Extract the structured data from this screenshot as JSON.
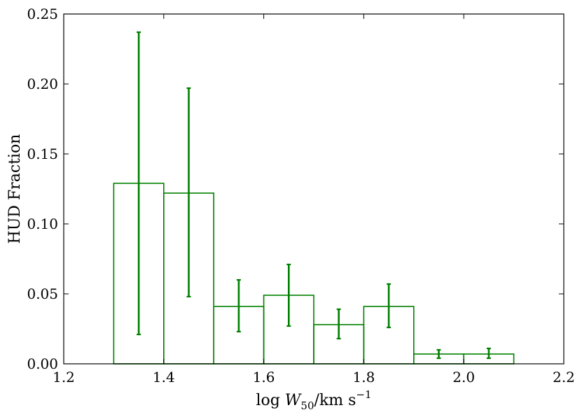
{
  "chart_data": {
    "type": "bar",
    "subtype": "step-histogram-with-error-bars",
    "title": "",
    "xlabel": {
      "prefix": "log ",
      "var": "W",
      "sub": "50",
      "slash": "/",
      "unit": "km s",
      "sup": "−1"
    },
    "ylabel": "HUD Fraction",
    "xlim": [
      1.2,
      2.2
    ],
    "ylim": [
      0.0,
      0.25
    ],
    "xticks": [
      1.2,
      1.4,
      1.6,
      1.8,
      2.0,
      2.2
    ],
    "xtick_labels": [
      "1.2",
      "1.4",
      "1.6",
      "1.8",
      "2.0",
      "2.2"
    ],
    "yticks": [
      0.0,
      0.05,
      0.1,
      0.15,
      0.2,
      0.25
    ],
    "ytick_labels": [
      "0.00",
      "0.05",
      "0.10",
      "0.15",
      "0.20",
      "0.25"
    ],
    "grid": false,
    "color": "#008000",
    "bin_edges": [
      1.3,
      1.4,
      1.5,
      1.6,
      1.7,
      1.8,
      1.9,
      2.0,
      2.1
    ],
    "values": [
      0.129,
      0.122,
      0.041,
      0.049,
      0.028,
      0.041,
      0.007,
      0.007
    ],
    "error_bars": [
      {
        "x": 1.35,
        "low": 0.021,
        "high": 0.237
      },
      {
        "x": 1.45,
        "low": 0.048,
        "high": 0.197
      },
      {
        "x": 1.55,
        "low": 0.023,
        "high": 0.06
      },
      {
        "x": 1.65,
        "low": 0.027,
        "high": 0.071
      },
      {
        "x": 1.75,
        "low": 0.018,
        "high": 0.039
      },
      {
        "x": 1.85,
        "low": 0.026,
        "high": 0.057
      },
      {
        "x": 1.95,
        "low": 0.004,
        "high": 0.01
      },
      {
        "x": 2.05,
        "low": 0.004,
        "high": 0.011
      }
    ]
  }
}
